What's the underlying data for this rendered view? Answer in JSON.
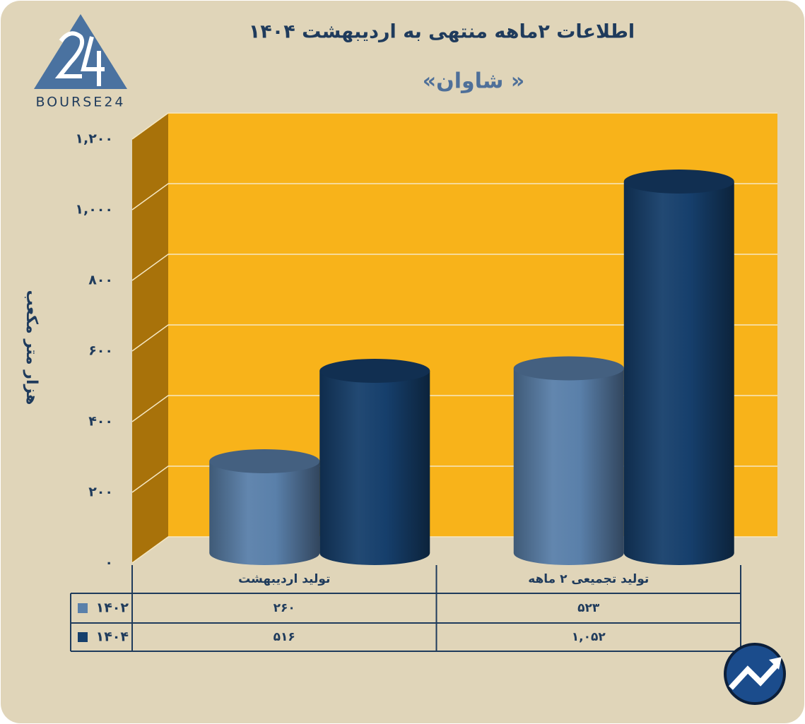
{
  "logo": "BOURSE24",
  "chart_data": {
    "type": "bar3d-cylinder",
    "title": "اطلاعات  ۲ماهه منتهی به اردیبهشت ۱۴۰۴",
    "subtitle": "«شاوان »",
    "y_label": "هزار متر مکعب",
    "categories": [
      "تولید اردیبهشت",
      "تولید تجمیعی ۲ ماهه"
    ],
    "series": [
      {
        "name": "۱۴۰۲",
        "color": "#5a80aa",
        "values": [
          260,
          523
        ],
        "value_labels": [
          "۲۶۰",
          "۵۲۳"
        ]
      },
      {
        "name": "۱۴۰۴",
        "color": "#163f6c",
        "values": [
          516,
          1052
        ],
        "value_labels": [
          "۵۱۶",
          "۱,۰۵۲"
        ]
      }
    ],
    "ylim": [
      0,
      1200
    ],
    "yticks": [
      {
        "value": 0,
        "label": "۰"
      },
      {
        "value": 200,
        "label": "۲۰۰"
      },
      {
        "value": 400,
        "label": "۴۰۰"
      },
      {
        "value": 600,
        "label": "۶۰۰"
      },
      {
        "value": 800,
        "label": "۸۰۰"
      },
      {
        "value": 1000,
        "label": "۱,۰۰۰"
      },
      {
        "value": 1200,
        "label": "۱,۲۰۰"
      }
    ],
    "grid": true,
    "data_table": true
  }
}
